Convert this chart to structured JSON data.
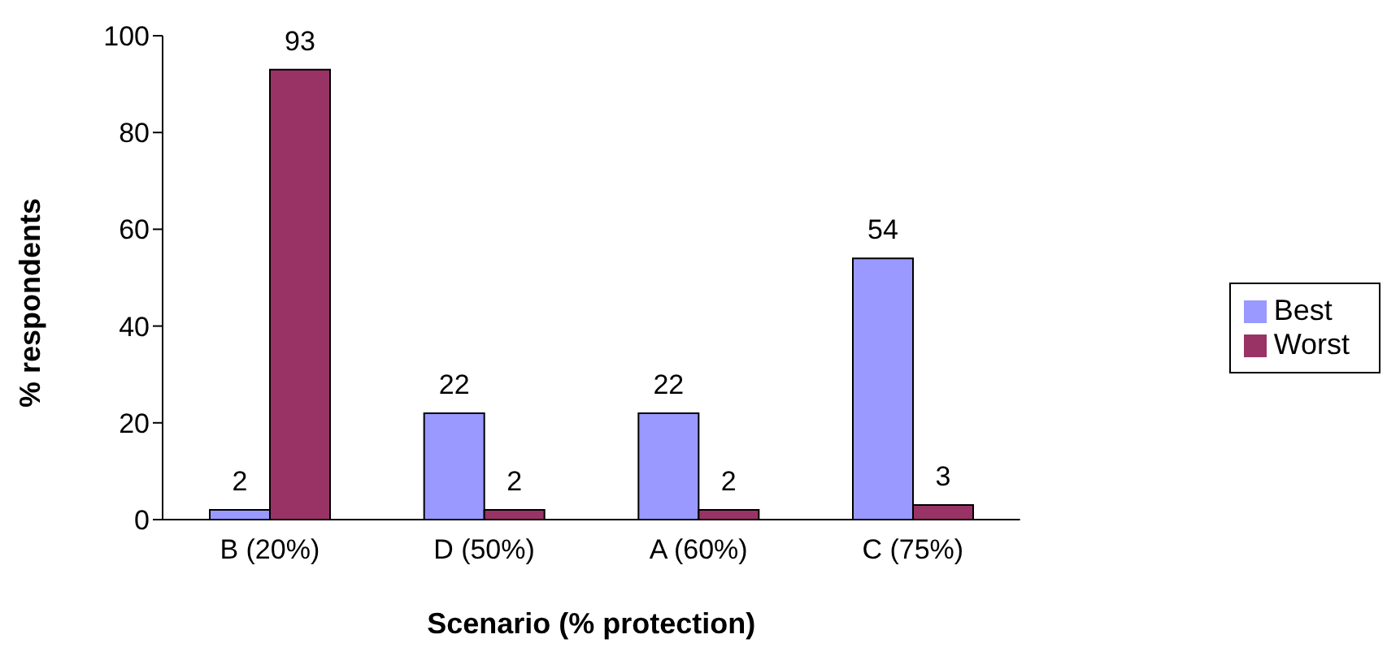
{
  "chart_data": {
    "type": "bar",
    "xlabel": "Scenario (% protection)",
    "ylabel": "% respondents",
    "categories": [
      "B (20%)",
      "D (50%)",
      "A (60%)",
      "C (75%)"
    ],
    "series": [
      {
        "name": "Best",
        "color": "#9999ff",
        "values": [
          2,
          22,
          22,
          54
        ]
      },
      {
        "name": "Worst",
        "color": "#993366",
        "values": [
          93,
          2,
          2,
          3
        ]
      }
    ],
    "ylim": [
      0,
      100
    ],
    "yticks": [
      0,
      20,
      40,
      60,
      80,
      100
    ],
    "grid": false,
    "legend": "right",
    "data_labels": true
  }
}
